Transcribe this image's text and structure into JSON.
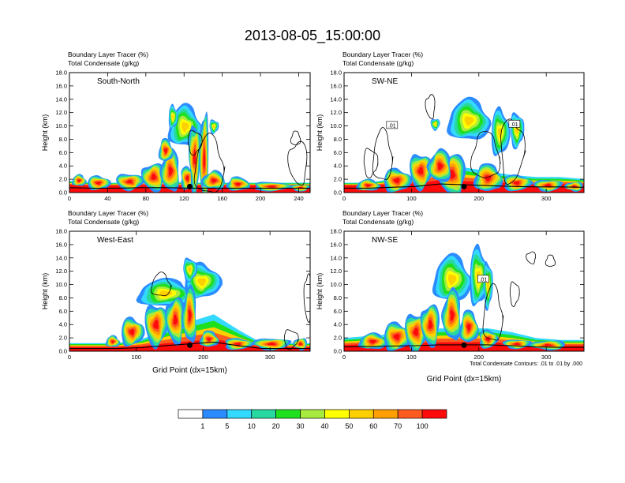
{
  "title": "2013-08-05_15:00:00",
  "palette": [
    "#ffffff",
    "#2a8cff",
    "#33d9ff",
    "#27d9a0",
    "#1ee01e",
    "#a6eb3d",
    "#ffff00",
    "#ffd000",
    "#ffa000",
    "#ff5a1f",
    "#ff0a0a"
  ],
  "colorbar": {
    "labels": [
      "1",
      "5",
      "10",
      "20",
      "30",
      "40",
      "50",
      "60",
      "70",
      "100"
    ]
  },
  "footnote": "Total Condensate Contours: .01 to .01 by .000",
  "panels": [
    {
      "header1": "Boundary Layer Tracer    (%)",
      "header2": "Total Condensate    (g/kg)",
      "label": "South-North",
      "xlim": [
        0,
        252
      ],
      "xticks": [
        "0",
        "40",
        "80",
        "120",
        "160",
        "200",
        "240"
      ],
      "ylabel": "Height (km)",
      "yticks": [
        "0.0",
        "2.0",
        "4.0",
        "6.0",
        "8.0",
        "10.0",
        "12.0",
        "14.0",
        "16.0",
        "18.0"
      ],
      "xlabel": "",
      "contour_labels": []
    },
    {
      "header1": "Boundary Layer Tracer    (%)",
      "header2": "Total Condensate    (g/kg)",
      "label": "SW-NE",
      "xlim": [
        0,
        356
      ],
      "xticks": [
        "0",
        "100",
        "200",
        "300"
      ],
      "ylabel": "Height (km)",
      "yticks": [
        "0.0",
        "2.0",
        "4.0",
        "6.0",
        "8.0",
        "10.0",
        "12.0",
        "14.0",
        "16.0",
        "18.0"
      ],
      "xlabel": "",
      "contour_labels": [
        ".01",
        ".01"
      ]
    },
    {
      "header1": "Boundary Layer Tracer    (%)",
      "header2": "Total Condensate    (g/kg)",
      "label": "West-East",
      "xlim": [
        0,
        360
      ],
      "xticks": [
        "0",
        "100",
        "200",
        "300"
      ],
      "ylabel": "Height (km)",
      "yticks": [
        "0.0",
        "2.0",
        "4.0",
        "6.0",
        "8.0",
        "10.0",
        "12.0",
        "14.0",
        "16.0",
        "18.0"
      ],
      "xlabel": "Grid Point (dx=15km)",
      "contour_labels": []
    },
    {
      "header1": "Boundary Layer Tracer    (%)",
      "header2": "Total Condensate    (g/kg)",
      "label": "NW-SE",
      "xlim": [
        0,
        356
      ],
      "xticks": [
        "0",
        "100",
        "200",
        "300"
      ],
      "ylabel": "Height (km)",
      "yticks": [
        "0.0",
        "2.0",
        "4.0",
        "6.0",
        "8.0",
        "10.0",
        "12.0",
        "14.0",
        "16.0",
        "18.0"
      ],
      "xlabel": "Grid Point (dx=15km)",
      "contour_labels": [
        ".01"
      ]
    }
  ]
}
